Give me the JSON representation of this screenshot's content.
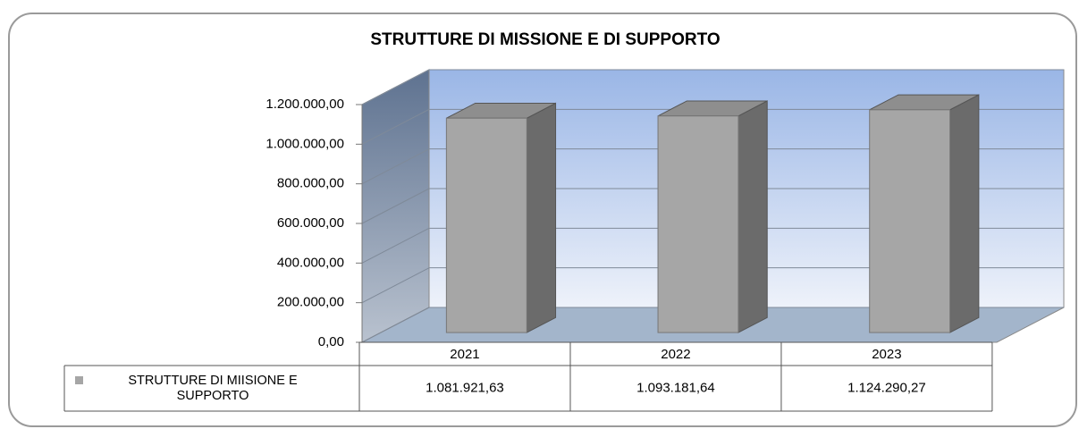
{
  "chart_data": {
    "type": "bar",
    "title": "STRUTTURE DI MISSIONE E DI SUPPORTO",
    "categories": [
      "2021",
      "2022",
      "2023"
    ],
    "series": [
      {
        "name": "STRUTTURE DI MIISIONE E SUPPORTO",
        "color": "#a6a6a6",
        "values": [
          1081921.63,
          1093181.64,
          1124290.27
        ],
        "value_labels": [
          "1.081.921,63",
          "1.093.181,64",
          "1.124.290,27"
        ]
      }
    ],
    "ylim": [
      0,
      1200000
    ],
    "yticks": [
      {
        "value": 0,
        "label": "0,00"
      },
      {
        "value": 200000,
        "label": "200.000,00"
      },
      {
        "value": 400000,
        "label": "400.000,00"
      },
      {
        "value": 600000,
        "label": "600.000,00"
      },
      {
        "value": 800000,
        "label": "800.000,00"
      },
      {
        "value": 1000000,
        "label": "1.000.000,00"
      },
      {
        "value": 1200000,
        "label": "1.200.000,00"
      }
    ],
    "grid": true
  }
}
